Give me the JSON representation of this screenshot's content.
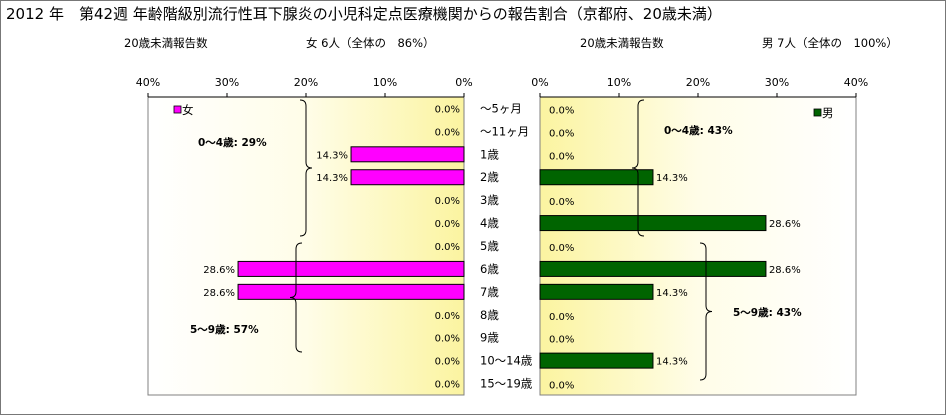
{
  "title": "2012 年　第42週 年齢階級別流行性耳下腺炎の小児科定点医療機関からの報告割合（京都府、20歳未満）",
  "left_header": {
    "label": "20歳未満報告数",
    "count": "女 6人（全体の　86%）"
  },
  "right_header": {
    "label": "20歳未満報告数",
    "count": "男 7人（全体の　100%）"
  },
  "chart_data": [
    {
      "type": "bar",
      "orientation": "horizontal",
      "direction": "right-to-left",
      "categories": [
        "～5ヶ月",
        "～11ヶ月",
        "1歳",
        "2歳",
        "3歳",
        "4歳",
        "5歳",
        "6歳",
        "7歳",
        "8歳",
        "9歳",
        "10～14歳",
        "15～19歳"
      ],
      "series": [
        {
          "name": "女",
          "color": "#ff00ff",
          "values": [
            0,
            0,
            14.3,
            14.3,
            0,
            0,
            0,
            28.6,
            28.6,
            0,
            0,
            0,
            0
          ]
        }
      ],
      "data_labels": [
        "0.0%",
        "0.0%",
        "14.3%",
        "14.3%",
        "0.0%",
        "0.0%",
        "0.0%",
        "28.6%",
        "28.6%",
        "0.0%",
        "0.0%",
        "0.0%",
        "0.0%"
      ],
      "xlim": [
        0,
        40
      ],
      "ticks": [
        "40%",
        "30%",
        "20%",
        "10%",
        "0%"
      ],
      "legend": "top-left",
      "annotations": [
        "0～4歳: 29%",
        "5～9歳: 57%"
      ]
    },
    {
      "type": "bar",
      "orientation": "horizontal",
      "direction": "left-to-right",
      "categories": [
        "～5ヶ月",
        "～11ヶ月",
        "1歳",
        "2歳",
        "3歳",
        "4歳",
        "5歳",
        "6歳",
        "7歳",
        "8歳",
        "9歳",
        "10～14歳",
        "15～19歳"
      ],
      "series": [
        {
          "name": "男",
          "color": "#006400",
          "values": [
            0,
            0,
            0,
            14.3,
            0,
            28.6,
            0,
            28.6,
            14.3,
            0,
            0,
            14.3,
            0
          ]
        }
      ],
      "data_labels": [
        "0.0%",
        "0.0%",
        "0.0%",
        "14.3%",
        "0.0%",
        "28.6%",
        "0.0%",
        "28.6%",
        "14.3%",
        "0.0%",
        "0.0%",
        "14.3%",
        "0.0%"
      ],
      "xlim": [
        0,
        40
      ],
      "ticks": [
        "0%",
        "10%",
        "20%",
        "30%",
        "40%"
      ],
      "legend": "top-right",
      "annotations": [
        "0～4歳: 43%",
        "5～9歳: 43%"
      ]
    }
  ]
}
